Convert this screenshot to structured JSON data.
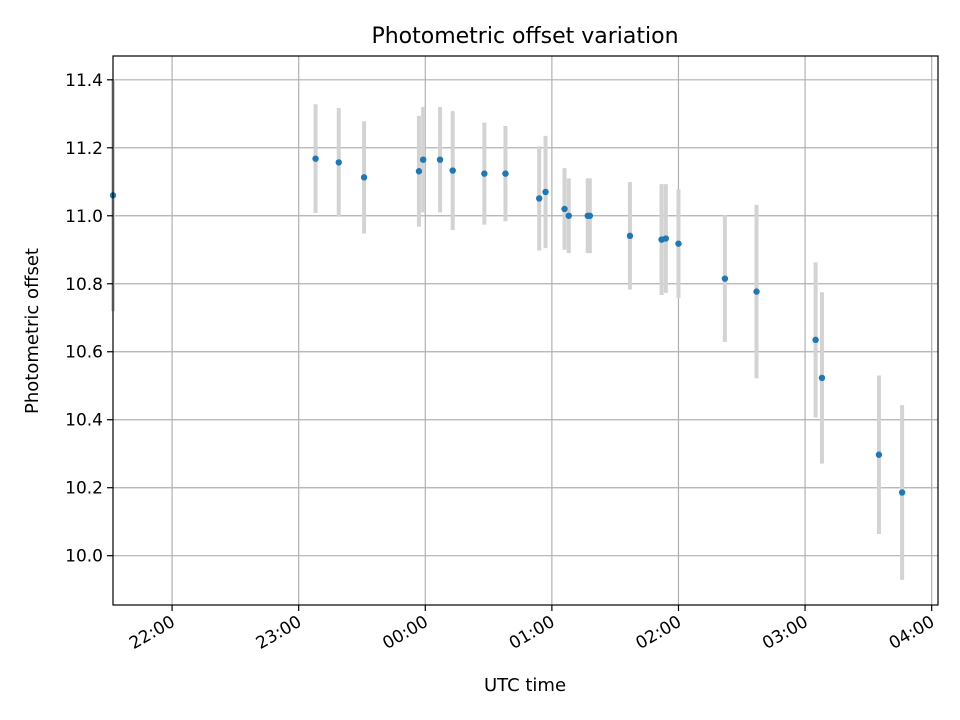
{
  "chart_data": {
    "type": "scatter",
    "title": "Photometric offset variation",
    "xlabel": "UTC time",
    "ylabel": "Photometric offset",
    "x_unit": "time",
    "xlim": [
      "21:32",
      "04:03"
    ],
    "ylim": [
      9.855,
      11.47
    ],
    "x_ticks": [
      "22:00",
      "23:00",
      "00:00",
      "01:00",
      "02:00",
      "03:00",
      "04:00"
    ],
    "y_ticks": [
      "10.0",
      "10.2",
      "10.4",
      "10.6",
      "10.8",
      "11.0",
      "11.2",
      "11.4"
    ],
    "grid": true,
    "colors": {
      "marker": "#1f77b4",
      "errorbar": "#d3d3d3",
      "grid": "#b0b0b0"
    },
    "points": [
      {
        "t": "21:32",
        "y": 11.06,
        "err": 0.34
      },
      {
        "t": "23:08",
        "y": 11.168,
        "err": 0.16
      },
      {
        "t": "23:19",
        "y": 11.157,
        "err": 0.16
      },
      {
        "t": "23:31",
        "y": 11.113,
        "err": 0.165
      },
      {
        "t": "23:57",
        "y": 11.131,
        "err": 0.163
      },
      {
        "t": "23:59",
        "y": 11.165,
        "err": 0.155
      },
      {
        "t": "00:07",
        "y": 11.165,
        "err": 0.155
      },
      {
        "t": "00:13",
        "y": 11.133,
        "err": 0.175
      },
      {
        "t": "00:28",
        "y": 11.124,
        "err": 0.15
      },
      {
        "t": "00:38",
        "y": 11.124,
        "err": 0.14
      },
      {
        "t": "00:54",
        "y": 11.051,
        "err": 0.153
      },
      {
        "t": "00:57",
        "y": 11.07,
        "err": 0.165
      },
      {
        "t": "01:06",
        "y": 11.02,
        "err": 0.12
      },
      {
        "t": "01:08",
        "y": 11.0,
        "err": 0.11
      },
      {
        "t": "01:17",
        "y": 11.0,
        "err": 0.11
      },
      {
        "t": "01:18",
        "y": 11.0,
        "err": 0.11
      },
      {
        "t": "01:37",
        "y": 10.941,
        "err": 0.158
      },
      {
        "t": "01:52",
        "y": 10.93,
        "err": 0.163
      },
      {
        "t": "01:54",
        "y": 10.933,
        "err": 0.16
      },
      {
        "t": "02:00",
        "y": 10.918,
        "err": 0.16
      },
      {
        "t": "02:22",
        "y": 10.815,
        "err": 0.186
      },
      {
        "t": "02:37",
        "y": 10.777,
        "err": 0.255
      },
      {
        "t": "03:05",
        "y": 10.635,
        "err": 0.228
      },
      {
        "t": "03:08",
        "y": 10.523,
        "err": 0.252
      },
      {
        "t": "03:35",
        "y": 10.297,
        "err": 0.233
      },
      {
        "t": "03:46",
        "y": 10.186,
        "err": 0.257
      }
    ]
  }
}
